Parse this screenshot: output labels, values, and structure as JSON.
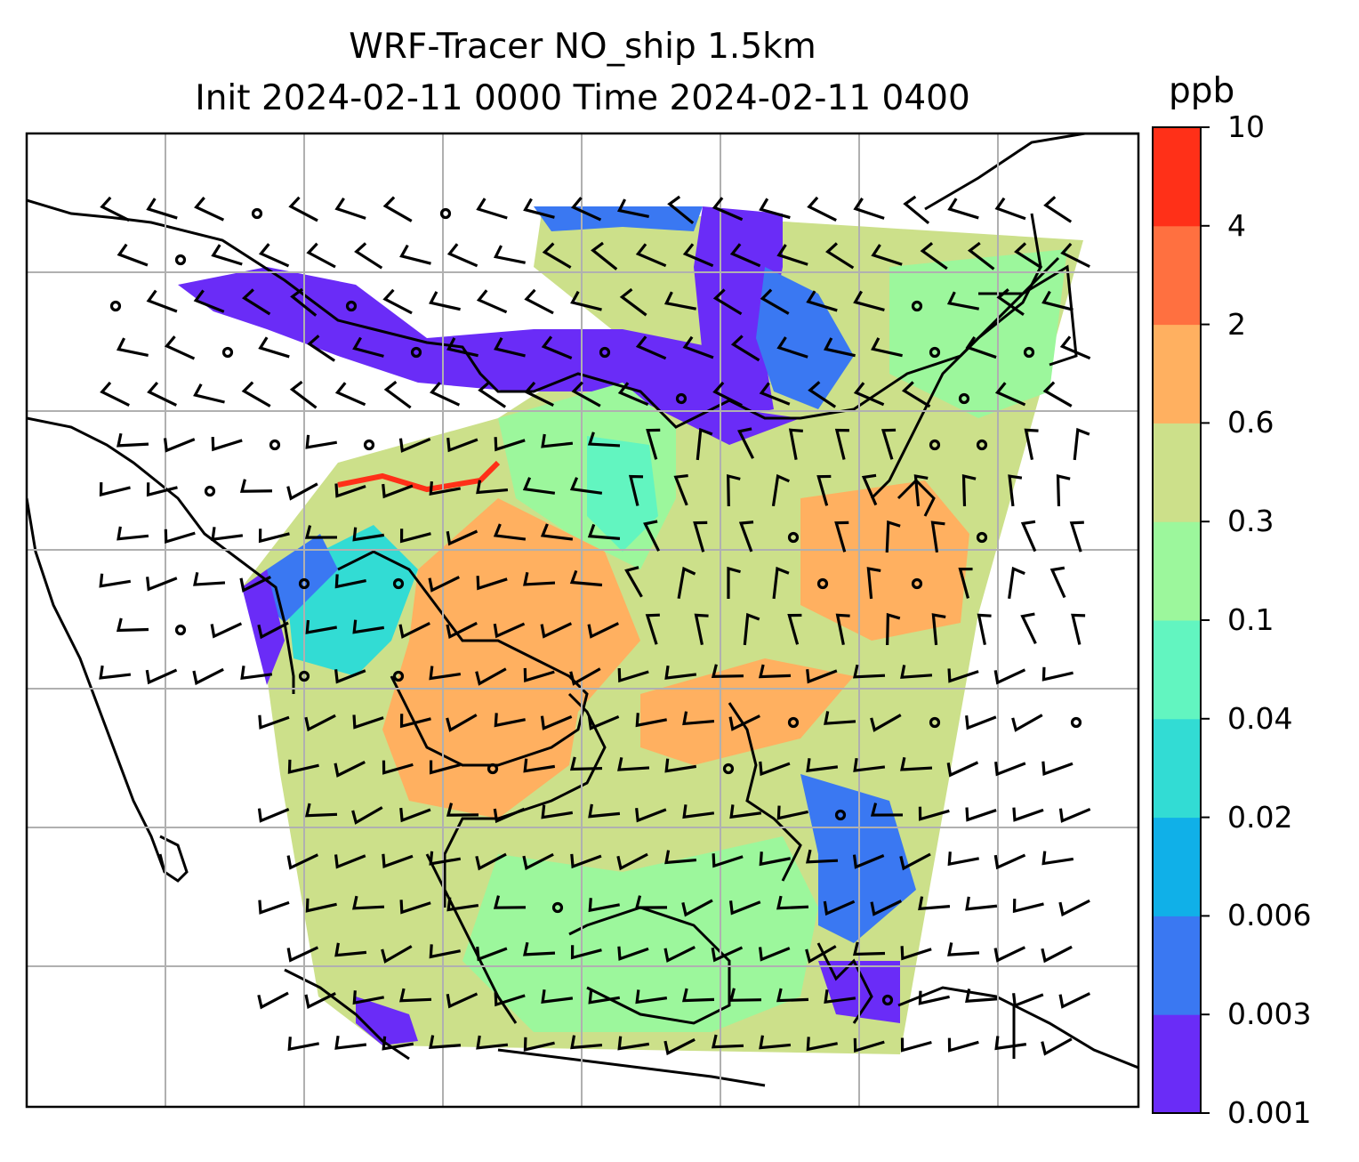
{
  "title": {
    "line1": "WRF-Tracer NO_ship 1.5km",
    "line2": "Init 2024-02-11 0000 Time 2024-02-11 0400"
  },
  "colorbar": {
    "unit": "ppb",
    "levels": [
      "0.001",
      "0.003",
      "0.006",
      "0.02",
      "0.04",
      "0.1",
      "0.3",
      "0.6",
      "2",
      "4",
      "10"
    ],
    "colors": [
      "#6a2cf7",
      "#3a78f2",
      "#10b0e8",
      "#32dcd4",
      "#62f5c0",
      "#9cf79c",
      "#cce08a",
      "#ffb060",
      "#ff7040",
      "#ff3018"
    ]
  },
  "map": {
    "land_outline_color": "#000000",
    "gridline_color": "#b0b0b0",
    "wind_barb_color": "#000000"
  }
}
